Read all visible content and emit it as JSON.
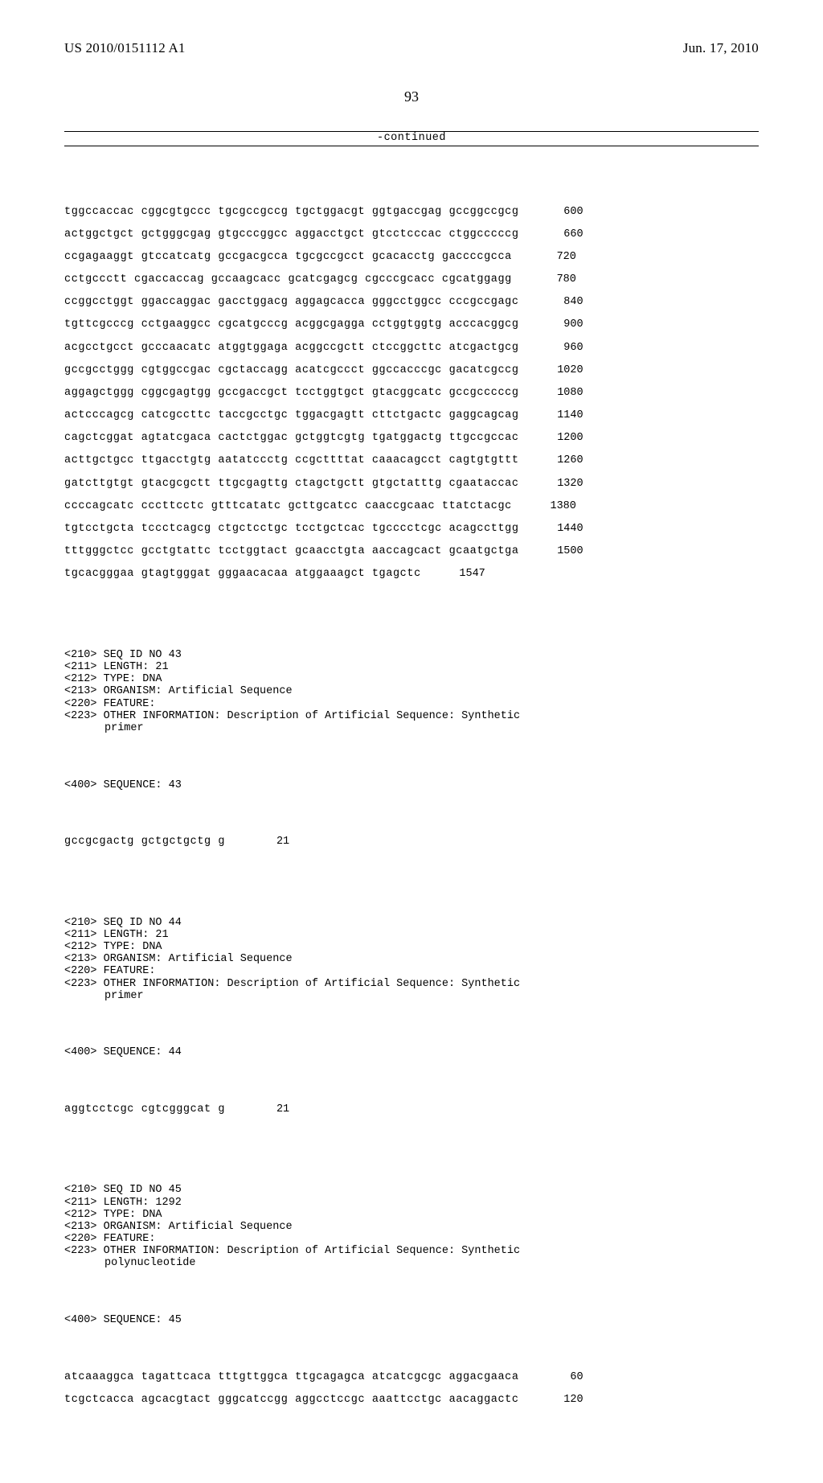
{
  "header": {
    "pubnum": "US 2010/0151112 A1",
    "pubdate": "Jun. 17, 2010"
  },
  "pagenum": "93",
  "continued_label": "-continued",
  "seq42_rows": [
    {
      "seq": "tggccaccac cggcgtgccc tgcgccgccg tgctggacgt ggtgaccgag gccggccgcg",
      "pos": "600"
    },
    {
      "seq": "actggctgct gctgggcgag gtgcccggcc aggacctgct gtcctcccac ctggcccccg",
      "pos": "660"
    },
    {
      "seq": "ccgagaaggt gtccatcatg gccgacgcca tgcgccgcct gcacacctg gaccccgcca",
      "pos": "720"
    },
    {
      "seq": "cctgccctt cgaccaccag gccaagcacc gcatcgagcg cgcccgcacc cgcatggagg",
      "pos": "780"
    },
    {
      "seq": "ccggcctggt ggaccaggac gacctggacg aggagcacca gggcctggcc cccgccgagc",
      "pos": "840"
    },
    {
      "seq": "tgttcgcccg cctgaaggcc cgcatgcccg acggcgagga cctggtggtg acccacggcg",
      "pos": "900"
    },
    {
      "seq": "acgcctgcct gcccaacatc atggtggaga acggccgctt ctccggcttc atcgactgcg",
      "pos": "960"
    },
    {
      "seq": "gccgcctggg cgtggccgac cgctaccagg acatcgccct ggccacccgc gacatcgccg",
      "pos": "1020"
    },
    {
      "seq": "aggagctggg cggcgagtgg gccgaccgct tcctggtgct gtacggcatc gccgcccccg",
      "pos": "1080"
    },
    {
      "seq": "actcccagcg catcgccttc taccgcctgc tggacgagtt cttctgactc gaggcagcag",
      "pos": "1140"
    },
    {
      "seq": "cagctcggat agtatcgaca cactctggac gctggtcgtg tgatggactg ttgccgccac",
      "pos": "1200"
    },
    {
      "seq": "acttgctgcc ttgacctgtg aatatccctg ccgcttttat caaacagcct cagtgtgttt",
      "pos": "1260"
    },
    {
      "seq": "gatcttgtgt gtacgcgctt ttgcgagttg ctagctgctt gtgctatttg cgaataccac",
      "pos": "1320"
    },
    {
      "seq": "ccccagcatc cccttcctc gtttcatatc gcttgcatcc caaccgcaac ttatctacgc",
      "pos": "1380"
    },
    {
      "seq": "tgtcctgcta tccctcagcg ctgctcctgc tcctgctcac tgcccctcgc acagccttgg",
      "pos": "1440"
    },
    {
      "seq": "tttgggctcc gcctgtattc tcctggtact gcaacctgta aaccagcact gcaatgctga",
      "pos": "1500"
    },
    {
      "seq": "tgcacgggaa gtagtgggat gggaacacaa atggaaagct tgagctc",
      "pos": "1547"
    }
  ],
  "seq43": {
    "meta": [
      "<210> SEQ ID NO 43",
      "<211> LENGTH: 21",
      "<212> TYPE: DNA",
      "<213> ORGANISM: Artificial Sequence",
      "<220> FEATURE:",
      "<223> OTHER INFORMATION: Description of Artificial Sequence: Synthetic"
    ],
    "meta_indent": "primer",
    "label": "<400> SEQUENCE: 43",
    "rows": [
      {
        "seq": "gccgcgactg gctgctgctg g",
        "pos": "21"
      }
    ]
  },
  "seq44": {
    "meta": [
      "<210> SEQ ID NO 44",
      "<211> LENGTH: 21",
      "<212> TYPE: DNA",
      "<213> ORGANISM: Artificial Sequence",
      "<220> FEATURE:",
      "<223> OTHER INFORMATION: Description of Artificial Sequence: Synthetic"
    ],
    "meta_indent": "primer",
    "label": "<400> SEQUENCE: 44",
    "rows": [
      {
        "seq": "aggtcctcgc cgtcgggcat g",
        "pos": "21"
      }
    ]
  },
  "seq45": {
    "meta": [
      "<210> SEQ ID NO 45",
      "<211> LENGTH: 1292",
      "<212> TYPE: DNA",
      "<213> ORGANISM: Artificial Sequence",
      "<220> FEATURE:",
      "<223> OTHER INFORMATION: Description of Artificial Sequence: Synthetic"
    ],
    "meta_indent": "polynucleotide",
    "label": "<400> SEQUENCE: 45",
    "rows": [
      {
        "seq": "atcaaaggca tagattcaca tttgttggca ttgcagagca atcatcgcgc aggacgaaca",
        "pos": "60"
      },
      {
        "seq": "tcgctcacca agcacgtact gggcatccgg aggcctccgc aaattcctgc aacaggactc",
        "pos": "120"
      }
    ]
  }
}
